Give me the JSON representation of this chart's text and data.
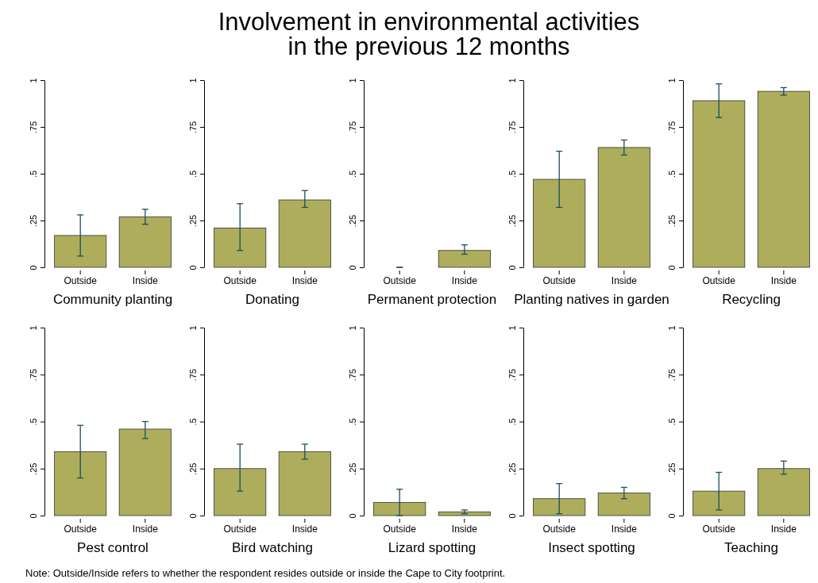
{
  "chart_data": [
    {
      "type": "bar",
      "xlabel": "Community planting",
      "categories": [
        "Outside",
        "Inside"
      ],
      "values": [
        0.17,
        0.27
      ],
      "errors": [
        [
          0.06,
          0.28
        ],
        [
          0.23,
          0.31
        ]
      ],
      "color": "#adad5c",
      "ylim": [
        0,
        1
      ],
      "yticks": [
        {
          "value": 0,
          "label": "0"
        },
        {
          "value": 0.25,
          "label": ".25"
        },
        {
          "value": 0.5,
          "label": ".5"
        },
        {
          "value": 0.75,
          "label": ".75"
        },
        {
          "value": 1,
          "label": "1"
        }
      ]
    },
    {
      "type": "bar",
      "xlabel": "Donating",
      "categories": [
        "Outside",
        "Inside"
      ],
      "values": [
        0.21,
        0.36
      ],
      "errors": [
        [
          0.09,
          0.34
        ],
        [
          0.32,
          0.41
        ]
      ],
      "color": "#adad5c",
      "ylim": [
        0,
        1
      ],
      "yticks": [
        {
          "value": 0,
          "label": "0"
        },
        {
          "value": 0.25,
          "label": ".25"
        },
        {
          "value": 0.5,
          "label": ".5"
        },
        {
          "value": 0.75,
          "label": ".75"
        },
        {
          "value": 1,
          "label": "1"
        }
      ]
    },
    {
      "type": "bar",
      "title": "Involvement in environmental activities\nin the previous 12 months",
      "xlabel": "Permanent protection",
      "categories": [
        "Outside",
        "Inside"
      ],
      "values": [
        0,
        0.09
      ],
      "errors": [
        [
          0,
          0
        ],
        [
          0.07,
          0.12
        ]
      ],
      "color": "#adad5c",
      "ylim": [
        0,
        1
      ],
      "yticks": [
        {
          "value": 0,
          "label": "0"
        },
        {
          "value": 0.25,
          "label": ".25"
        },
        {
          "value": 0.5,
          "label": ".5"
        },
        {
          "value": 0.75,
          "label": ".75"
        },
        {
          "value": 1,
          "label": "1"
        }
      ]
    },
    {
      "type": "bar",
      "xlabel": "Planting natives in garden",
      "categories": [
        "Outside",
        "Inside"
      ],
      "values": [
        0.47,
        0.64
      ],
      "errors": [
        [
          0.32,
          0.62
        ],
        [
          0.6,
          0.68
        ]
      ],
      "color": "#adad5c",
      "ylim": [
        0,
        1
      ],
      "yticks": [
        {
          "value": 0,
          "label": "0"
        },
        {
          "value": 0.25,
          "label": ".25"
        },
        {
          "value": 0.5,
          "label": ".5"
        },
        {
          "value": 0.75,
          "label": ".75"
        },
        {
          "value": 1,
          "label": "1"
        }
      ]
    },
    {
      "type": "bar",
      "xlabel": "Recycling",
      "categories": [
        "Outside",
        "Inside"
      ],
      "values": [
        0.89,
        0.94
      ],
      "errors": [
        [
          0.8,
          0.98
        ],
        [
          0.92,
          0.96
        ]
      ],
      "color": "#adad5c",
      "ylim": [
        0,
        1
      ],
      "yticks": [
        {
          "value": 0,
          "label": "0"
        },
        {
          "value": 0.25,
          "label": ".25"
        },
        {
          "value": 0.5,
          "label": ".5"
        },
        {
          "value": 0.75,
          "label": ".75"
        },
        {
          "value": 1,
          "label": "1"
        }
      ]
    },
    {
      "type": "bar",
      "annotations": [
        "Note: Outside/Inside refers to whether the respondent resides outside or inside the Cape to City footprint."
      ],
      "xlabel": "Pest control",
      "categories": [
        "Outside",
        "Inside"
      ],
      "values": [
        0.34,
        0.46
      ],
      "errors": [
        [
          0.2,
          0.48
        ],
        [
          0.41,
          0.5
        ]
      ],
      "color": "#adad5c",
      "ylim": [
        0,
        1
      ],
      "yticks": [
        {
          "value": 0,
          "label": "0"
        },
        {
          "value": 0.25,
          "label": ".25"
        },
        {
          "value": 0.5,
          "label": ".5"
        },
        {
          "value": 0.75,
          "label": ".75"
        },
        {
          "value": 1,
          "label": "1"
        }
      ]
    },
    {
      "type": "bar",
      "xlabel": "Bird watching",
      "categories": [
        "Outside",
        "Inside"
      ],
      "values": [
        0.25,
        0.34
      ],
      "errors": [
        [
          0.13,
          0.38
        ],
        [
          0.3,
          0.38
        ]
      ],
      "color": "#adad5c",
      "ylim": [
        0,
        1
      ],
      "yticks": [
        {
          "value": 0,
          "label": "0"
        },
        {
          "value": 0.25,
          "label": ".25"
        },
        {
          "value": 0.5,
          "label": ".5"
        },
        {
          "value": 0.75,
          "label": ".75"
        },
        {
          "value": 1,
          "label": "1"
        }
      ]
    },
    {
      "type": "bar",
      "xlabel": "Lizard spotting",
      "categories": [
        "Outside",
        "Inside"
      ],
      "values": [
        0.07,
        0.02
      ],
      "errors": [
        [
          0,
          0.14
        ],
        [
          0.01,
          0.03
        ]
      ],
      "color": "#adad5c",
      "ylim": [
        0,
        1
      ],
      "yticks": [
        {
          "value": 0,
          "label": "0"
        },
        {
          "value": 0.25,
          "label": ".25"
        },
        {
          "value": 0.5,
          "label": ".5"
        },
        {
          "value": 0.75,
          "label": ".75"
        },
        {
          "value": 1,
          "label": "1"
        }
      ]
    },
    {
      "type": "bar",
      "xlabel": "Insect spotting",
      "categories": [
        "Outside",
        "Inside"
      ],
      "values": [
        0.09,
        0.12
      ],
      "errors": [
        [
          0.01,
          0.17
        ],
        [
          0.09,
          0.15
        ]
      ],
      "color": "#adad5c",
      "ylim": [
        0,
        1
      ],
      "yticks": [
        {
          "value": 0,
          "label": "0"
        },
        {
          "value": 0.25,
          "label": ".25"
        },
        {
          "value": 0.5,
          "label": ".5"
        },
        {
          "value": 0.75,
          "label": ".75"
        },
        {
          "value": 1,
          "label": "1"
        }
      ]
    },
    {
      "type": "bar",
      "xlabel": "Teaching",
      "categories": [
        "Outside",
        "Inside"
      ],
      "values": [
        0.13,
        0.25
      ],
      "errors": [
        [
          0.03,
          0.23
        ],
        [
          0.22,
          0.29
        ]
      ],
      "color": "#adad5c",
      "ylim": [
        0,
        1
      ],
      "yticks": [
        {
          "value": 0,
          "label": "0"
        },
        {
          "value": 0.25,
          "label": ".25"
        },
        {
          "value": 0.5,
          "label": ".5"
        },
        {
          "value": 0.75,
          "label": ".75"
        },
        {
          "value": 1,
          "label": "1"
        }
      ]
    }
  ]
}
